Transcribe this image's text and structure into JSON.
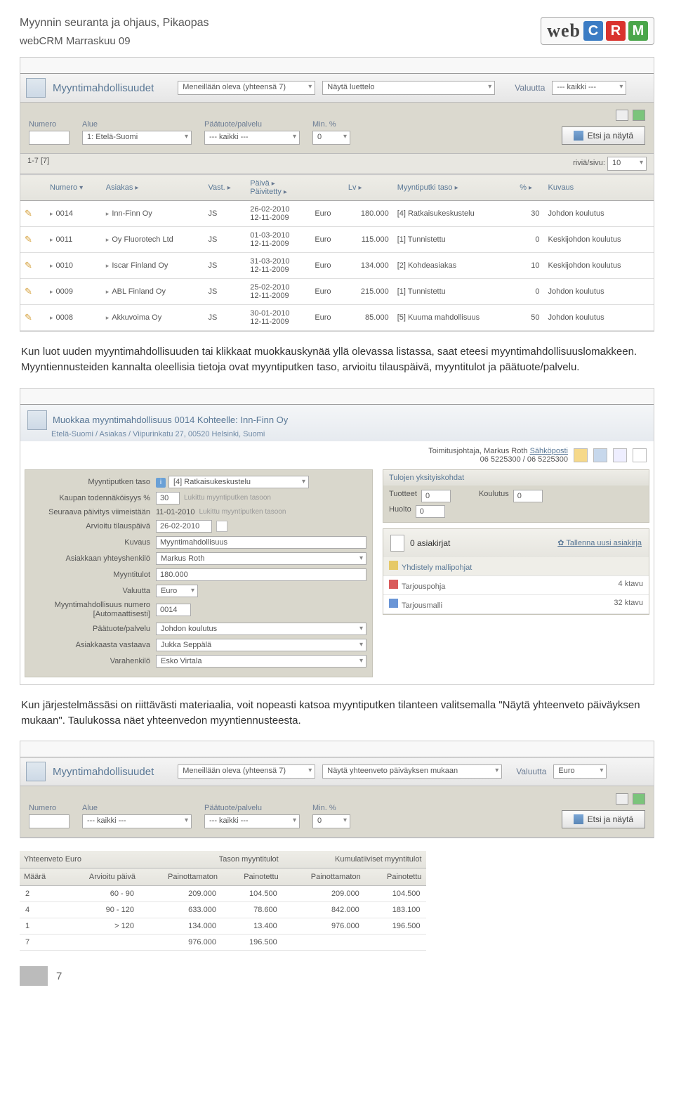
{
  "doc": {
    "title": "Myynnin seuranta ja ohjaus, Pikaopas",
    "subtitle": "webCRM Marraskuu 09",
    "page": "7"
  },
  "logo": {
    "web": "web",
    "c": "C",
    "r": "R",
    "m": "M",
    "c_color": "#3b7cc4",
    "r_color": "#d9332e",
    "m_color": "#4aa64a"
  },
  "p1": "Kun luot uuden myyntimahdollisuuden tai klikkaat muokkauskynää yllä olevassa listassa, saat eteesi myyntimahdollisuuslomakkeen. Myyntiennusteiden kannalta oleellisia tietoja ovat myyntiputken taso, arvioitu tilauspäivä, myyntitulot ja päätuote/palvelu.",
  "p2": "Kun järjestelmässäsi on riittävästi materiaalia, voit nopeasti katsoa myyntiputken tilanteen valitsemalla \"Näytä yhteenveto päiväyksen mukaan\". Taulukossa näet yhteenvedon myyntiennusteesta.",
  "shot1": {
    "title": "Myyntimahdollisuudet",
    "status": "Meneillään oleva (yhteensä 7)",
    "view": "Näytä luettelo",
    "currency_lbl": "Valuutta",
    "currency": "--- kaikki ---",
    "f_numero": "Numero",
    "f_alue": "Alue",
    "f_alue_val": "1: Etelä-Suomi",
    "f_prod": "Päätuote/palvelu",
    "f_prod_val": "--- kaikki ---",
    "f_min": "Min. %",
    "f_min_val": "0",
    "search": "Etsi ja näytä",
    "count": "1-7  [7]",
    "rows_lbl": "riviä/sivu:",
    "rows_val": "10",
    "cols": {
      "numero": "Numero",
      "asiakas": "Asiakas",
      "vast": "Vast.",
      "paiva": "Päivä",
      "paiv": "Päivitetty",
      "lv": "Lv",
      "taso": "Myyntiputki taso",
      "pct": "%",
      "kuvaus": "Kuvaus"
    },
    "rows": [
      {
        "n": "0014",
        "a": "Inn-Finn Oy",
        "v": "JS",
        "d1": "26-02-2010",
        "d2": "12-11-2009",
        "c": "Euro",
        "lv": "180.000",
        "t": "[4] Ratkaisukeskustelu",
        "p": "30",
        "k": "Johdon koulutus"
      },
      {
        "n": "0011",
        "a": "Oy Fluorotech Ltd",
        "v": "JS",
        "d1": "01-03-2010",
        "d2": "12-11-2009",
        "c": "Euro",
        "lv": "115.000",
        "t": "[1] Tunnistettu",
        "p": "0",
        "k": "Keskijohdon koulutus"
      },
      {
        "n": "0010",
        "a": "Iscar Finland Oy",
        "v": "JS",
        "d1": "31-03-2010",
        "d2": "12-11-2009",
        "c": "Euro",
        "lv": "134.000",
        "t": "[2] Kohdeasiakas",
        "p": "10",
        "k": "Keskijohdon koulutus"
      },
      {
        "n": "0009",
        "a": "ABL Finland Oy",
        "v": "JS",
        "d1": "25-02-2010",
        "d2": "12-11-2009",
        "c": "Euro",
        "lv": "215.000",
        "t": "[1] Tunnistettu",
        "p": "0",
        "k": "Johdon koulutus"
      },
      {
        "n": "0008",
        "a": "Akkuvoima Oy",
        "v": "JS",
        "d1": "30-01-2010",
        "d2": "12-11-2009",
        "c": "Euro",
        "lv": "85.000",
        "t": "[5] Kuuma mahdollisuus",
        "p": "50",
        "k": "Johdon koulutus"
      }
    ]
  },
  "shot2": {
    "title": "Muokkaa myyntimahdollisuus 0014 Kohteelle: Inn-Finn Oy",
    "breadcrumb": "Etelä-Suomi / Asiakas / Viipurinkatu 27, 00520 Helsinki, Suomi",
    "contact_name": "Toimitusjohtaja, Markus Roth",
    "contact_mail": "Sähköposti",
    "contact_phone": "06 5225300  /  06 5225300",
    "form": {
      "l1": "Myyntiputken taso",
      "v1": "[4]  Ratkaisukeskustelu",
      "l2": "Kaupan todennäköisyys %",
      "v2": "30",
      "m2": "Lukittu myyntiputken tasoon",
      "l3": "Seuraava päivitys viimeistään",
      "v3": "11-01-2010",
      "m3": "Lukittu myyntiputken tasoon",
      "l4": "Arvioitu tilauspäivä",
      "v4": "26-02-2010",
      "l5": "Kuvaus",
      "v5": "Myyntimahdollisuus",
      "l6": "Asiakkaan yhteyshenkilö",
      "v6": "Markus Roth",
      "l7": "Myyntitulot",
      "v7": "180.000",
      "l8": "Valuutta",
      "v8": "Euro",
      "l9": "Myyntimahdollisuus numero [Automaattisesti]",
      "v9": "0014",
      "l10": "Päätuote/palvelu",
      "v10": "Johdon koulutus",
      "l11": "Asiakkaasta vastaava",
      "v11": "Jukka Seppälä",
      "l12": "Varahenkilö",
      "v12": "Esko Virtala"
    },
    "side": {
      "hdr1": "Tulojen yksityiskohdat",
      "tuotteet": "Tuotteet",
      "tuotteet_v": "0",
      "koulutus": "Koulutus",
      "koulutus_v": "0",
      "huolto": "Huolto",
      "huolto_v": "0",
      "docs_count": "0 asiakirjat",
      "save_doc": "Tallenna uusi asiakirja",
      "tmpl_hdr": "Yhdistely mallipohjat",
      "files": [
        {
          "n": "Tarjouspohja",
          "s": "4 ktavu",
          "ic": "pdf"
        },
        {
          "n": "Tarjousmalli",
          "s": "32 ktavu",
          "ic": "doc"
        }
      ]
    }
  },
  "shot3": {
    "title": "Myyntimahdollisuudet",
    "status": "Meneillään oleva (yhteensä 7)",
    "view": "Näytä yhteenveto päiväyksen mukaan",
    "currency_lbl": "Valuutta",
    "currency": "Euro",
    "f_numero": "Numero",
    "f_alue": "Alue",
    "f_alue_val": "--- kaikki ---",
    "f_prod": "Päätuote/palvelu",
    "f_prod_val": "--- kaikki ---",
    "f_min": "Min. %",
    "f_min_val": "0",
    "search": "Etsi ja näytä",
    "sum_hdr": "Yhteenveto  Euro",
    "col_maara": "Määrä",
    "col_arv": "Arvioitu päivä",
    "grp1": "Tason myyntitulot",
    "grp2": "Kumulatiiviset myyntitulot",
    "c_pa": "Painottamaton",
    "c_po": "Painotettu",
    "rows": [
      {
        "m": "2",
        "a": "60 - 90",
        "p1": "209.000",
        "w1": "104.500",
        "p2": "209.000",
        "w2": "104.500"
      },
      {
        "m": "4",
        "a": "90 - 120",
        "p1": "633.000",
        "w1": "78.600",
        "p2": "842.000",
        "w2": "183.100"
      },
      {
        "m": "1",
        "a": "> 120",
        "p1": "134.000",
        "w1": "13.400",
        "p2": "976.000",
        "w2": "196.500"
      }
    ],
    "total": {
      "m": "7",
      "p1": "976.000",
      "w1": "196.500"
    }
  }
}
